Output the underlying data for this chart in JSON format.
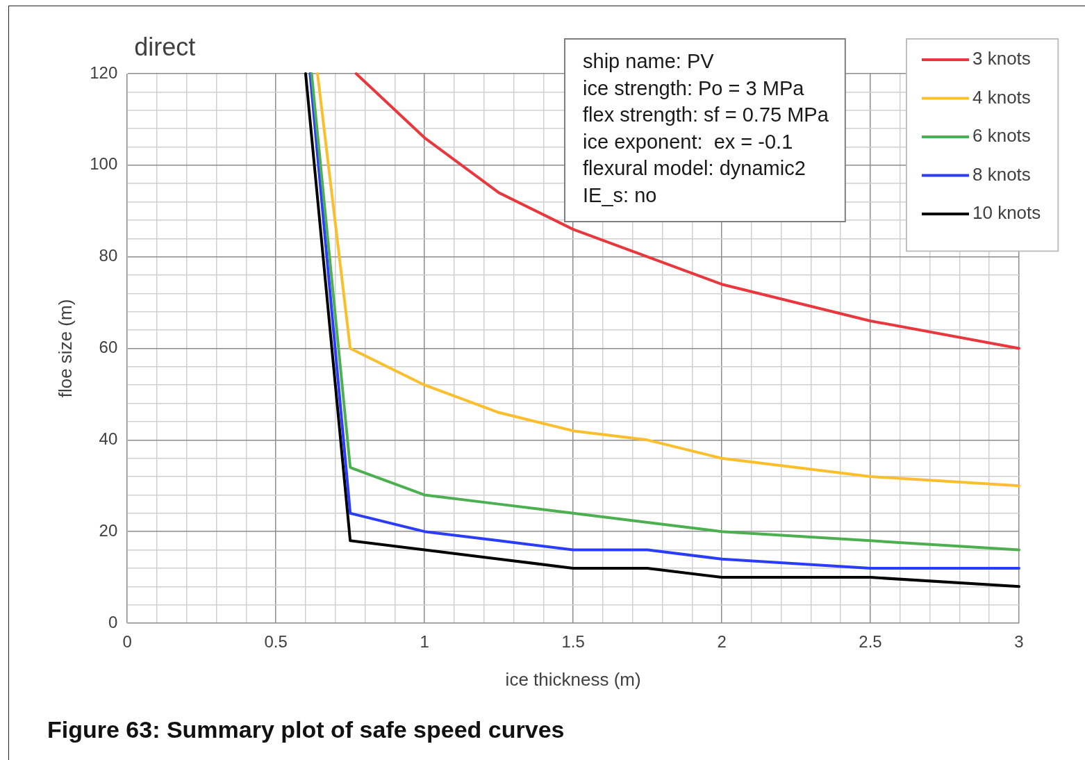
{
  "chart_data": {
    "type": "line",
    "title": "direct",
    "xlabel": "ice thickness (m)",
    "ylabel": "floe size (m)",
    "annotations": [
      "ship name: PV\nice strength: Po = 3 MPa\nflex strength: sf = 0.75 MPa\nice exponent:  ex = -0.1\nflexural model: dynamic2\nIE_s: no",
      "Figure 63: Summary plot of safe speed curves"
    ],
    "xlim": [
      0,
      3
    ],
    "ylim": [
      0,
      120
    ],
    "xticks": [
      0,
      {
        "value": 0.1,
        "label": null
      },
      {
        "value": 0.2,
        "label": null
      },
      {
        "value": 0.3,
        "label": null
      },
      {
        "value": 0.4,
        "label": null
      },
      0.5,
      {
        "value": 0.6,
        "label": null
      },
      {
        "value": 0.7,
        "label": null
      },
      {
        "value": 0.8,
        "label": null
      },
      {
        "value": 0.9,
        "label": null
      },
      1,
      {
        "value": 1.1,
        "label": null
      },
      {
        "value": 1.2,
        "label": null
      },
      {
        "value": 1.3,
        "label": null
      },
      {
        "value": 1.4,
        "label": null
      },
      1.5,
      {
        "value": 1.6,
        "label": null
      },
      {
        "value": 1.7,
        "label": null
      },
      {
        "value": 1.8,
        "label": null
      },
      {
        "value": 1.9,
        "label": null
      },
      2,
      {
        "value": 2.1,
        "label": null
      },
      {
        "value": 2.2,
        "label": null
      },
      {
        "value": 2.3,
        "label": null
      },
      {
        "value": 2.4,
        "label": null
      },
      2.5,
      {
        "value": 2.6,
        "label": null
      },
      {
        "value": 2.7,
        "label": null
      },
      {
        "value": 2.8,
        "label": null
      },
      {
        "value": 2.9,
        "label": null
      },
      3
    ],
    "yticks": [
      0,
      {
        "value": 4,
        "label": null
      },
      {
        "value": 8,
        "label": null
      },
      {
        "value": 12,
        "label": null
      },
      {
        "value": 16,
        "label": null
      },
      20,
      {
        "value": 24,
        "label": null
      },
      {
        "value": 28,
        "label": null
      },
      {
        "value": 32,
        "label": null
      },
      {
        "value": 36,
        "label": null
      },
      40,
      {
        "value": 44,
        "label": null
      },
      {
        "value": 48,
        "label": null
      },
      {
        "value": 52,
        "label": null
      },
      {
        "value": 56,
        "label": null
      },
      60,
      {
        "value": 64,
        "label": null
      },
      {
        "value": 68,
        "label": null
      },
      {
        "value": 72,
        "label": null
      },
      {
        "value": 76,
        "label": null
      },
      80,
      {
        "value": 84,
        "label": null
      },
      {
        "value": 88,
        "label": null
      },
      {
        "value": 92,
        "label": null
      },
      {
        "value": 96,
        "label": null
      },
      100,
      {
        "value": 104,
        "label": null
      },
      {
        "value": 108,
        "label": null
      },
      {
        "value": 112,
        "label": null
      },
      {
        "value": 116,
        "label": null
      },
      120
    ],
    "grid": true,
    "legend": "top right",
    "marker": "none",
    "line_style": "solid",
    "series": [
      {
        "name": "3 knots",
        "color": "#e8383d",
        "x": [
          0.77,
          1,
          1.25,
          1.5,
          1.75,
          2,
          2.5,
          3
        ],
        "values": [
          120,
          106,
          94,
          86,
          80,
          74,
          66,
          60
        ]
      },
      {
        "name": "4 knots",
        "color": "#fbbf2d",
        "x": [
          0.64,
          0.75,
          1,
          1.25,
          1.5,
          1.75,
          2,
          2.5,
          3
        ],
        "values": [
          120,
          60,
          52,
          46,
          42,
          40,
          36,
          32,
          30
        ]
      },
      {
        "name": "6 knots",
        "color": "#4caf50",
        "x": [
          0.62,
          0.75,
          1,
          1.25,
          1.5,
          1.75,
          2,
          2.5,
          3
        ],
        "values": [
          120,
          34,
          28,
          26,
          24,
          22,
          20,
          18,
          16
        ]
      },
      {
        "name": "8 knots",
        "color": "#2a3cff",
        "x": [
          0.615,
          0.75,
          1,
          1.25,
          1.5,
          1.75,
          2,
          2.5,
          3
        ],
        "values": [
          120,
          24,
          20,
          18,
          16,
          16,
          14,
          12,
          12
        ]
      },
      {
        "name": "10 knots",
        "color": "#000000",
        "x": [
          0.6,
          0.75,
          1,
          1.25,
          1.5,
          1.75,
          2,
          2.5,
          3
        ],
        "values": [
          120,
          18,
          16,
          14,
          12,
          12,
          10,
          10,
          8
        ]
      }
    ]
  }
}
